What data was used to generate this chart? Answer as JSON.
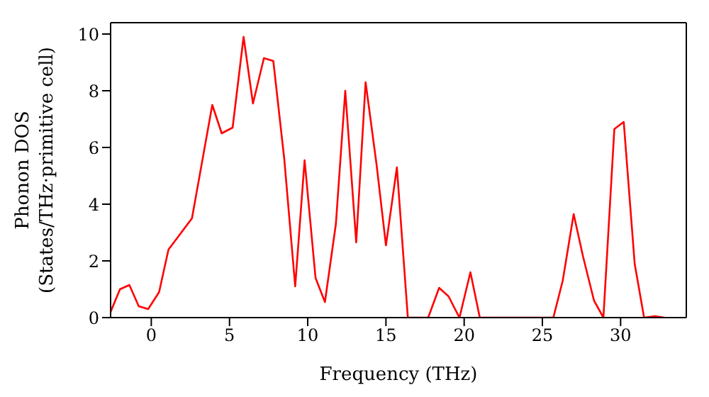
{
  "chart_data": {
    "type": "line",
    "xlabel": "Frequency (THz)",
    "ylabel": "Phonon DOS\n(States/THz·primitive cell)",
    "x": [
      -2.6,
      -2,
      -1.4,
      -0.8,
      -0.2,
      0.5,
      1.1,
      2.6,
      3.9,
      4.5,
      5.2,
      5.9,
      6.5,
      7.2,
      7.8,
      8.5,
      9.2,
      9.8,
      10.5,
      11.1,
      11.8,
      12.4,
      13.1,
      13.7,
      14.4,
      15.0,
      15.7,
      16.4,
      17.7,
      18.4,
      19.0,
      19.7,
      20.4,
      21.0,
      25.7,
      26.3,
      27.0,
      27.6,
      28.3,
      28.9,
      29.6,
      30.2,
      30.9,
      31.5,
      32.2,
      32.8
    ],
    "series": [
      {
        "color": "#ff0000",
        "values": [
          0.2,
          1.0,
          1.15,
          0.4,
          0.3,
          0.9,
          2.4,
          3.5,
          7.5,
          6.5,
          6.7,
          9.9,
          7.55,
          9.15,
          9.05,
          5.6,
          1.1,
          5.55,
          1.4,
          0.55,
          3.3,
          8.0,
          2.65,
          8.3,
          5.4,
          2.55,
          5.3,
          0,
          0,
          1.05,
          0.75,
          0,
          1.6,
          0,
          0,
          1.3,
          3.65,
          2.15,
          0.6,
          0,
          6.65,
          6.9,
          1.9,
          0,
          0.05,
          0
        ]
      }
    ],
    "xlim": [
      -2.6,
      34.2
    ],
    "xticks": [
      0,
      5,
      10,
      15,
      20,
      25,
      30
    ],
    "ylim": [
      0,
      10.4
    ],
    "yticks": [
      0,
      2,
      4,
      6,
      8,
      10
    ],
    "line_style": "solid"
  }
}
